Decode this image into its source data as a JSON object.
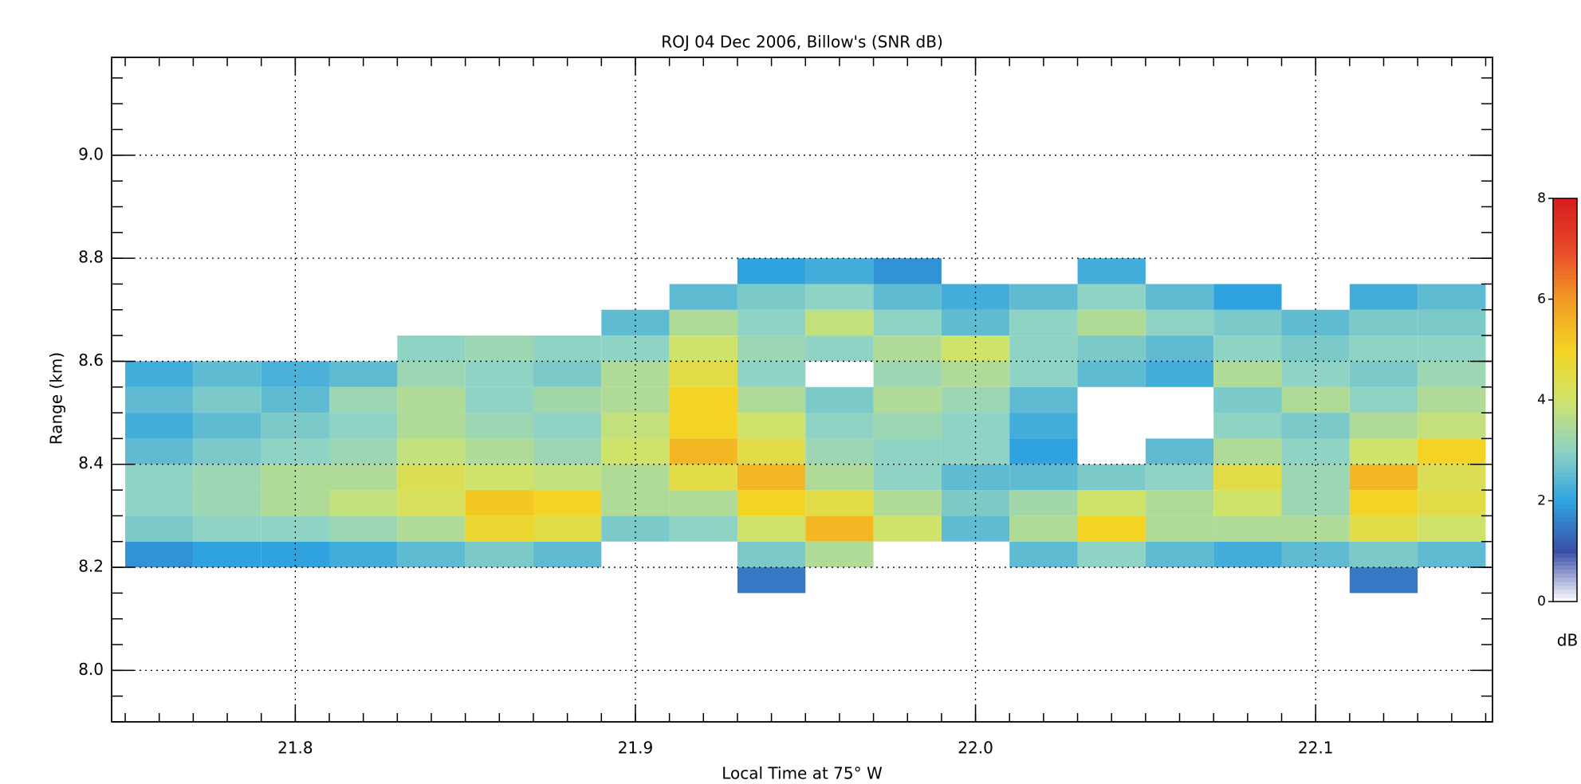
{
  "chart_data": {
    "type": "heatmap",
    "title": "ROJ 04 Dec 2006, Billow's (SNR dB)",
    "x_label": "Local Time at 75° W",
    "y_label": "Range (km)",
    "xlim": [
      21.746,
      22.152
    ],
    "ylim": [
      7.9,
      9.19
    ],
    "xticks": [
      21.8,
      21.9,
      {
        "value": 22,
        "label": "22.0"
      },
      22.1
    ],
    "yticks": [
      {
        "value": 8,
        "label": "8.0"
      },
      8.2,
      8.4,
      8.6,
      8.8,
      {
        "value": 9,
        "label": "9.0"
      }
    ],
    "xminor_step": 0.01,
    "yminor_step": 0.05,
    "grid": true,
    "x_edges": [
      21.75,
      21.77,
      21.79,
      21.81,
      21.83,
      21.85,
      21.87,
      21.89,
      21.91,
      21.93,
      21.95,
      21.97,
      21.99,
      22.01,
      22.03,
      22.05,
      22.07,
      22.09,
      22.11,
      22.13,
      22.15
    ],
    "y_edges": [
      8.15,
      8.2,
      8.25,
      8.3,
      8.35,
      8.4,
      8.45,
      8.5,
      8.55,
      8.6,
      8.65,
      8.7,
      8.75,
      8.8
    ],
    "z": [
      [
        null,
        null,
        null,
        null,
        null,
        null,
        null,
        null,
        null,
        1.5,
        null,
        null,
        null,
        null,
        null,
        null,
        null,
        null,
        1.5,
        null
      ],
      [
        1.8,
        2,
        2,
        2.2,
        2.5,
        2.8,
        2.5,
        null,
        null,
        2.8,
        3.5,
        null,
        null,
        2.5,
        3,
        2.5,
        2.2,
        2.5,
        2.8,
        2.5
      ],
      [
        2.8,
        3,
        3,
        3.2,
        3.5,
        4.8,
        4.5,
        2.8,
        3,
        4,
        5.5,
        4,
        2.5,
        3.5,
        5,
        3.5,
        3.5,
        3.5,
        4.5,
        4
      ],
      [
        3,
        3.2,
        3.5,
        3.8,
        4.2,
        5.2,
        5,
        3.5,
        3.5,
        5,
        4.5,
        3.5,
        2.8,
        3.3,
        4,
        3.5,
        4,
        3.2,
        5,
        4.5
      ],
      [
        3,
        3.2,
        3.5,
        3.5,
        4.3,
        4,
        3.8,
        3.5,
        4.5,
        5.5,
        3.5,
        3,
        2.5,
        2.5,
        2.8,
        3,
        4.5,
        3.2,
        5.5,
        4.3
      ],
      [
        2.5,
        2.8,
        3,
        3.2,
        3.8,
        3.5,
        3.2,
        4,
        5.5,
        4.5,
        3.2,
        3,
        3,
        2,
        null,
        2.5,
        3.5,
        3,
        4,
        5
      ],
      [
        2.2,
        2.5,
        2.8,
        3,
        3.5,
        3.2,
        3,
        3.8,
        5,
        4,
        3,
        3.2,
        3,
        2.2,
        null,
        null,
        3,
        2.8,
        3.5,
        3.8
      ],
      [
        2.5,
        2.8,
        2.5,
        3.2,
        3.5,
        3,
        3.3,
        3.5,
        5,
        3.5,
        2.8,
        3.5,
        3.2,
        2.5,
        null,
        null,
        2.8,
        3.5,
        3,
        3.5
      ],
      [
        2.2,
        2.5,
        2.3,
        2.5,
        3.2,
        3,
        2.8,
        3.5,
        4.5,
        3,
        null,
        3.2,
        3.5,
        3,
        2.5,
        2.2,
        3.5,
        3,
        2.8,
        3.2
      ],
      [
        null,
        null,
        null,
        null,
        3,
        3.2,
        3,
        3,
        4,
        3.2,
        3,
        3.5,
        4,
        3,
        2.8,
        2.5,
        3,
        2.8,
        3,
        3
      ],
      [
        null,
        null,
        null,
        null,
        null,
        null,
        null,
        2.5,
        3.5,
        3,
        3.8,
        3,
        2.5,
        3,
        3.5,
        3,
        2.8,
        2.5,
        2.8,
        2.8
      ],
      [
        null,
        null,
        null,
        null,
        null,
        null,
        null,
        null,
        2.5,
        2.8,
        3,
        2.5,
        2.2,
        2.5,
        3,
        2.5,
        2,
        null,
        2.2,
        2.5
      ],
      [
        null,
        null,
        null,
        null,
        null,
        null,
        null,
        null,
        null,
        2,
        2.2,
        1.8,
        null,
        null,
        2.2,
        null,
        null,
        null,
        null,
        null
      ]
    ],
    "zlim": [
      0,
      8
    ],
    "zticks": [
      0,
      2,
      4,
      6,
      8
    ],
    "colorbar_label": "dB",
    "colorscale": [
      "#ffffff",
      "#3a4fa8",
      "#2fa3e0",
      "#8fd3c4",
      "#cfe36a",
      "#f3d323",
      "#f29a24",
      "#e6492a",
      "#d81c1c"
    ]
  }
}
